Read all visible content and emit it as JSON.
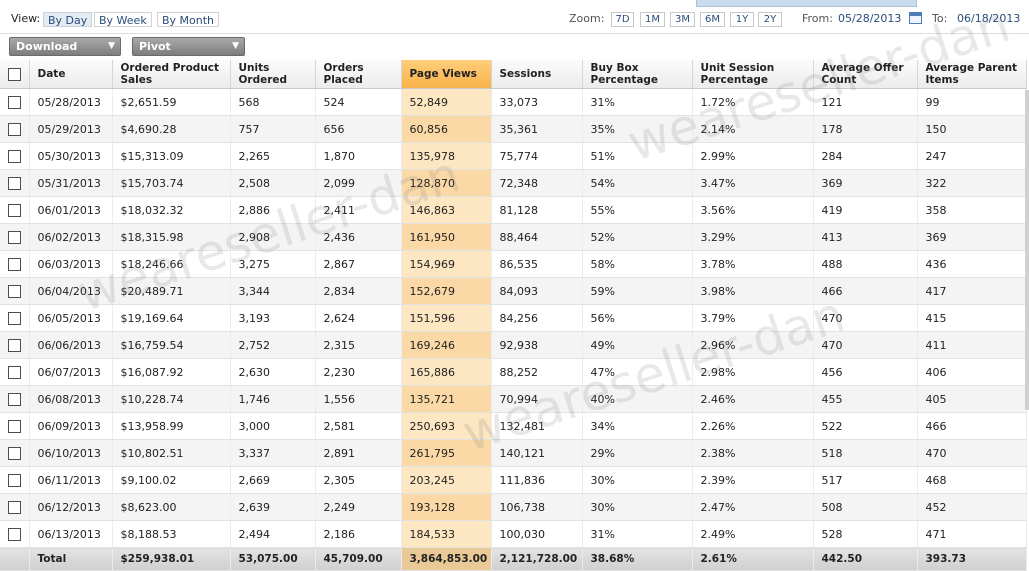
{
  "toolbar": {
    "view_label": "View:",
    "view_options": [
      "By Day",
      "By Week",
      "By Month"
    ],
    "zoom_label": "Zoom:",
    "zoom_options": [
      "7D",
      "1M",
      "3M",
      "6M",
      "1Y",
      "2Y"
    ],
    "from_label": "From:",
    "from_date": "05/28/2013",
    "to_label": "To:",
    "to_date": "06/18/2013"
  },
  "controls": {
    "download_label": "Download",
    "pivot_label": "Pivot"
  },
  "table": {
    "columns": {
      "date": "Date",
      "ordered_sales": "Ordered Product Sales",
      "units_ordered": "Units Ordered",
      "orders_placed": "Orders Placed",
      "page_views": "Page Views",
      "sessions": "Sessions",
      "buy_box": "Buy Box Percentage",
      "unit_session": "Unit Session Percentage",
      "avg_offer": "Average Offer Count",
      "avg_parent": "Average Parent Items"
    },
    "rows": [
      {
        "date": "05/28/2013",
        "sales": "$2,651.59",
        "units": "568",
        "orders": "524",
        "views": "52,849",
        "sessions": "33,073",
        "buybox": "31%",
        "unitsess": "1.72%",
        "offers": "121",
        "parent": "99"
      },
      {
        "date": "05/29/2013",
        "sales": "$4,690.28",
        "units": "757",
        "orders": "656",
        "views": "60,856",
        "sessions": "35,361",
        "buybox": "35%",
        "unitsess": "2.14%",
        "offers": "178",
        "parent": "150"
      },
      {
        "date": "05/30/2013",
        "sales": "$15,313.09",
        "units": "2,265",
        "orders": "1,870",
        "views": "135,978",
        "sessions": "75,774",
        "buybox": "51%",
        "unitsess": "2.99%",
        "offers": "284",
        "parent": "247"
      },
      {
        "date": "05/31/2013",
        "sales": "$15,703.74",
        "units": "2,508",
        "orders": "2,099",
        "views": "128,870",
        "sessions": "72,348",
        "buybox": "54%",
        "unitsess": "3.47%",
        "offers": "369",
        "parent": "322"
      },
      {
        "date": "06/01/2013",
        "sales": "$18,032.32",
        "units": "2,886",
        "orders": "2,411",
        "views": "146,863",
        "sessions": "81,128",
        "buybox": "55%",
        "unitsess": "3.56%",
        "offers": "419",
        "parent": "358"
      },
      {
        "date": "06/02/2013",
        "sales": "$18,315.98",
        "units": "2,908",
        "orders": "2,436",
        "views": "161,950",
        "sessions": "88,464",
        "buybox": "52%",
        "unitsess": "3.29%",
        "offers": "413",
        "parent": "369"
      },
      {
        "date": "06/03/2013",
        "sales": "$18,246.66",
        "units": "3,275",
        "orders": "2,867",
        "views": "154,969",
        "sessions": "86,535",
        "buybox": "58%",
        "unitsess": "3.78%",
        "offers": "488",
        "parent": "436"
      },
      {
        "date": "06/04/2013",
        "sales": "$20,489.71",
        "units": "3,344",
        "orders": "2,834",
        "views": "152,679",
        "sessions": "84,093",
        "buybox": "59%",
        "unitsess": "3.98%",
        "offers": "466",
        "parent": "417"
      },
      {
        "date": "06/05/2013",
        "sales": "$19,169.64",
        "units": "3,193",
        "orders": "2,624",
        "views": "151,596",
        "sessions": "84,256",
        "buybox": "56%",
        "unitsess": "3.79%",
        "offers": "470",
        "parent": "415"
      },
      {
        "date": "06/06/2013",
        "sales": "$16,759.54",
        "units": "2,752",
        "orders": "2,315",
        "views": "169,246",
        "sessions": "92,938",
        "buybox": "49%",
        "unitsess": "2.96%",
        "offers": "470",
        "parent": "411"
      },
      {
        "date": "06/07/2013",
        "sales": "$16,087.92",
        "units": "2,630",
        "orders": "2,230",
        "views": "165,886",
        "sessions": "88,252",
        "buybox": "47%",
        "unitsess": "2.98%",
        "offers": "456",
        "parent": "406"
      },
      {
        "date": "06/08/2013",
        "sales": "$10,228.74",
        "units": "1,746",
        "orders": "1,556",
        "views": "135,721",
        "sessions": "70,994",
        "buybox": "40%",
        "unitsess": "2.46%",
        "offers": "455",
        "parent": "405"
      },
      {
        "date": "06/09/2013",
        "sales": "$13,958.99",
        "units": "3,000",
        "orders": "2,581",
        "views": "250,693",
        "sessions": "132,481",
        "buybox": "34%",
        "unitsess": "2.26%",
        "offers": "522",
        "parent": "466"
      },
      {
        "date": "06/10/2013",
        "sales": "$10,802.51",
        "units": "3,337",
        "orders": "2,891",
        "views": "261,795",
        "sessions": "140,121",
        "buybox": "29%",
        "unitsess": "2.38%",
        "offers": "518",
        "parent": "470"
      },
      {
        "date": "06/11/2013",
        "sales": "$9,100.02",
        "units": "2,669",
        "orders": "2,305",
        "views": "203,245",
        "sessions": "111,836",
        "buybox": "30%",
        "unitsess": "2.39%",
        "offers": "517",
        "parent": "468"
      },
      {
        "date": "06/12/2013",
        "sales": "$8,623.00",
        "units": "2,639",
        "orders": "2,249",
        "views": "193,128",
        "sessions": "106,738",
        "buybox": "30%",
        "unitsess": "2.47%",
        "offers": "508",
        "parent": "452"
      },
      {
        "date": "06/13/2013",
        "sales": "$8,188.53",
        "units": "2,494",
        "orders": "2,186",
        "views": "184,533",
        "sessions": "100,030",
        "buybox": "31%",
        "unitsess": "2.49%",
        "offers": "528",
        "parent": "471"
      }
    ],
    "total": {
      "label": "Total",
      "sales": "$259,938.01",
      "units": "53,075.00",
      "orders": "45,709.00",
      "views": "3,864,853.00",
      "sessions": "2,121,728.00",
      "buybox": "38.68%",
      "unitsess": "2.61%",
      "offers": "442.50",
      "parent": "393.73"
    }
  },
  "watermark": "weareseller-dan",
  "colors": {
    "highlight_header": "#f8b24a",
    "highlight_cell": "#fde6c2",
    "link_blue": "#2a4d7a"
  }
}
